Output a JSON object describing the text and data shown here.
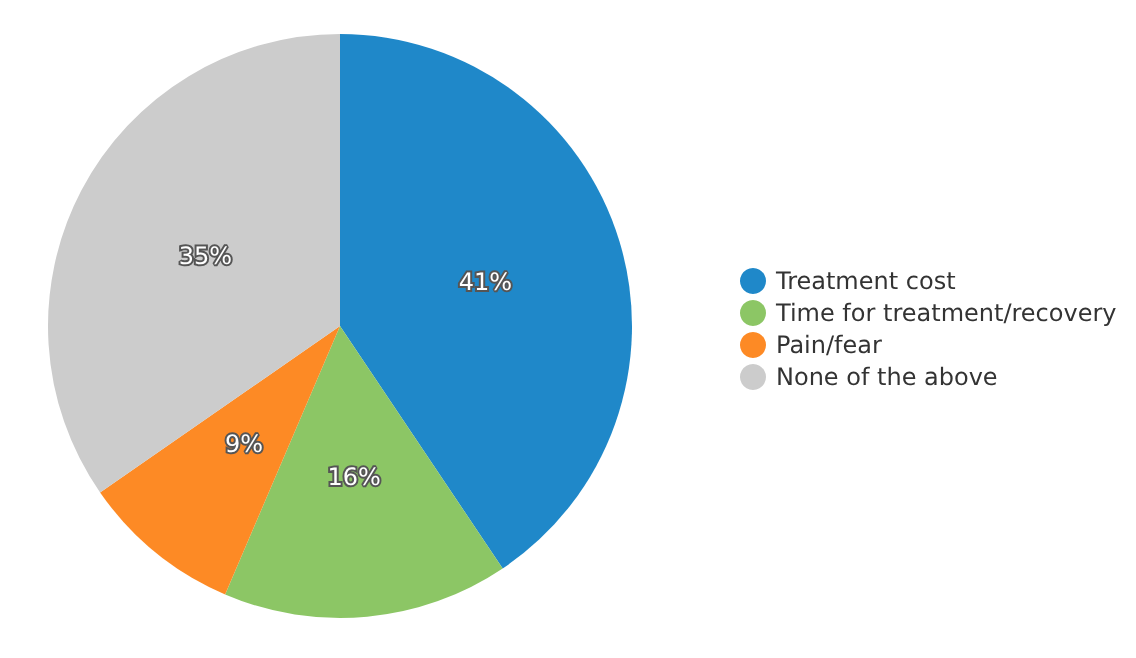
{
  "chart_data": {
    "type": "pie",
    "categories": [
      "Treatment cost",
      "Time for treatment/recovery",
      "Pain/fear",
      "None of the above"
    ],
    "values": [
      41,
      16,
      9,
      35
    ],
    "colors": [
      "#1f88c9",
      "#8cc665",
      "#fd8a25",
      "#cccccc"
    ],
    "value_labels": [
      "41%",
      "16%",
      "9%",
      "35%"
    ],
    "legend": "right"
  }
}
